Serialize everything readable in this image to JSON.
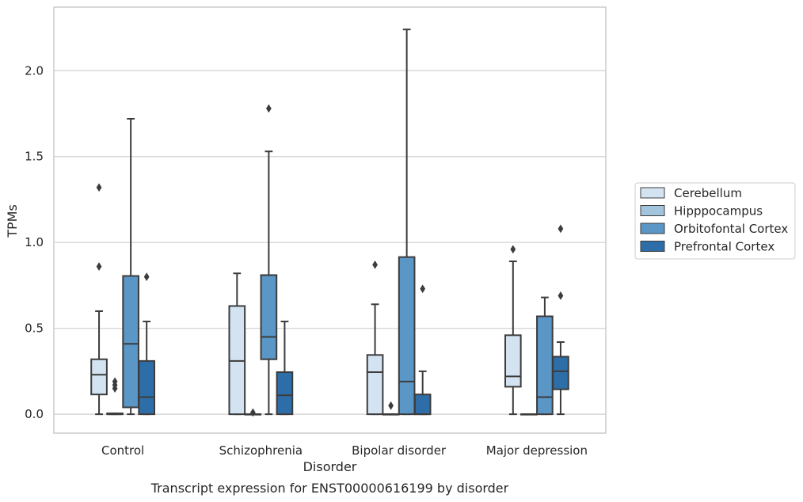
{
  "chart_data": {
    "type": "box",
    "title": "",
    "caption": "Transcript expression for ENST00000616199 by disorder",
    "xlabel": "Disorder",
    "ylabel": "TPMs",
    "ylim": [
      -0.11,
      2.37
    ],
    "yticks": [
      0.0,
      0.5,
      1.0,
      1.5,
      2.0
    ],
    "ytick_labels": [
      "0.0",
      "0.5",
      "1.0",
      "1.5",
      "2.0"
    ],
    "grid": "horizontal",
    "legend_position": "right",
    "categories": [
      "Control",
      "Schizophrenia",
      "Bipolar disorder",
      "Major depression"
    ],
    "series": [
      {
        "name": "Cerebellum",
        "color": "#d4e3f2",
        "boxes": [
          {
            "whisker_low": 0.0,
            "q1": 0.115,
            "median": 0.23,
            "q3": 0.32,
            "whisker_high": 0.6,
            "outliers": [
              0.86,
              1.32
            ]
          },
          {
            "whisker_low": 0.0,
            "q1": 0.0,
            "median": 0.31,
            "q3": 0.63,
            "whisker_high": 0.82,
            "outliers": []
          },
          {
            "whisker_low": 0.0,
            "q1": 0.0,
            "median": 0.245,
            "q3": 0.345,
            "whisker_high": 0.64,
            "outliers": [
              0.87
            ]
          },
          {
            "whisker_low": 0.0,
            "q1": 0.16,
            "median": 0.22,
            "q3": 0.46,
            "whisker_high": 0.89,
            "outliers": [
              0.96
            ]
          }
        ]
      },
      {
        "name": "Hipppocampus",
        "color": "#a3c4dd",
        "boxes": [
          {
            "whisker_low": 0.0,
            "q1": 0.0,
            "median": 0.0,
            "q3": 0.005,
            "whisker_high": 0.005,
            "outliers": [
              0.15,
              0.17,
              0.19
            ]
          },
          {
            "whisker_low": 0.0,
            "q1": 0.0,
            "median": 0.0,
            "q3": 0.0,
            "whisker_high": 0.0,
            "outliers": [
              0.01
            ]
          },
          {
            "whisker_low": 0.0,
            "q1": 0.0,
            "median": 0.0,
            "q3": 0.0,
            "whisker_high": 0.0,
            "outliers": [
              0.05
            ]
          },
          {
            "whisker_low": 0.0,
            "q1": 0.0,
            "median": 0.0,
            "q3": 0.0,
            "whisker_high": 0.0,
            "outliers": []
          }
        ]
      },
      {
        "name": "Orbitofontal Cortex",
        "color": "#5a96c6",
        "boxes": [
          {
            "whisker_low": 0.0,
            "q1": 0.04,
            "median": 0.41,
            "q3": 0.805,
            "whisker_high": 1.72,
            "outliers": []
          },
          {
            "whisker_low": 0.0,
            "q1": 0.32,
            "median": 0.45,
            "q3": 0.81,
            "whisker_high": 1.53,
            "outliers": [
              1.78
            ]
          },
          {
            "whisker_low": 0.0,
            "q1": 0.0,
            "median": 0.19,
            "q3": 0.915,
            "whisker_high": 2.24,
            "outliers": []
          },
          {
            "whisker_low": 0.0,
            "q1": 0.0,
            "median": 0.1,
            "q3": 0.57,
            "whisker_high": 0.68,
            "outliers": []
          }
        ]
      },
      {
        "name": "Prefrontal Cortex",
        "color": "#2e6ea8",
        "boxes": [
          {
            "whisker_low": 0.0,
            "q1": 0.0,
            "median": 0.1,
            "q3": 0.31,
            "whisker_high": 0.54,
            "outliers": [
              0.8
            ]
          },
          {
            "whisker_low": 0.0,
            "q1": 0.0,
            "median": 0.11,
            "q3": 0.245,
            "whisker_high": 0.54,
            "outliers": []
          },
          {
            "whisker_low": 0.0,
            "q1": 0.0,
            "median": 0.0,
            "q3": 0.115,
            "whisker_high": 0.25,
            "outliers": [
              0.73
            ]
          },
          {
            "whisker_low": 0.0,
            "q1": 0.145,
            "median": 0.25,
            "q3": 0.335,
            "whisker_high": 0.42,
            "outliers": [
              0.69,
              1.08
            ]
          }
        ]
      }
    ]
  }
}
